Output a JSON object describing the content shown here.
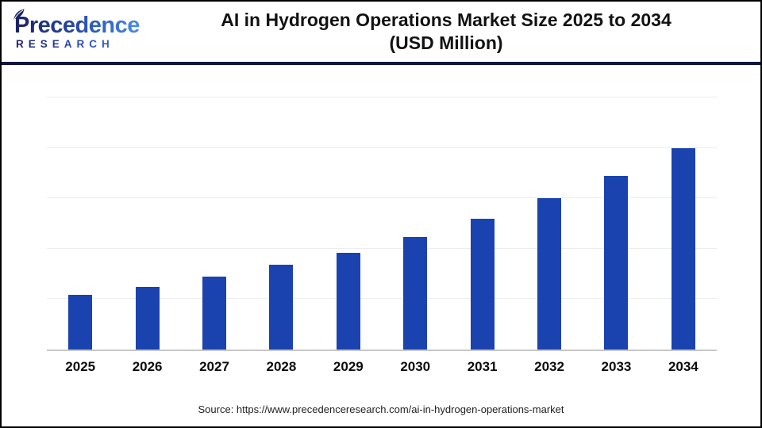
{
  "header": {
    "logo": {
      "name": "Precedence",
      "subtitle": "RESEARCH"
    },
    "title_line1": "AI in Hydrogen Operations Market Size 2025 to 2034",
    "title_line2": "(USD Million)"
  },
  "chart_data": {
    "type": "bar",
    "title": "AI in Hydrogen Operations Market Size 2025 to 2034 (USD Million)",
    "categories": [
      "2025",
      "2026",
      "2027",
      "2028",
      "2029",
      "2030",
      "2031",
      "2032",
      "2033",
      "2034"
    ],
    "values": [
      27,
      31,
      36,
      42,
      48,
      56,
      65,
      75,
      86,
      100
    ],
    "units": "relative index; y-axis has no tick labels in the image — values estimated from gridlines (one gridline = 25, tallest 2034 bar = 100)",
    "xlabel": "",
    "ylabel": "",
    "ylim": [
      0,
      136
    ],
    "gridlines": [
      25,
      50,
      75,
      100,
      125
    ],
    "grid": "horizontal only, light gray",
    "legend": "none",
    "bar_color": "#1a43af",
    "axis_color": "#c8c8c8"
  },
  "footer": {
    "source": "Source: https://www.precedenceresearch.com/ai-in-hydrogen-operations-market"
  },
  "colors": {
    "divider": "#0f1540",
    "title_text": "#121212",
    "logo_gradient_start": "#1c2263",
    "logo_gradient_end": "#53a0ea",
    "frame_border": "#000000"
  }
}
